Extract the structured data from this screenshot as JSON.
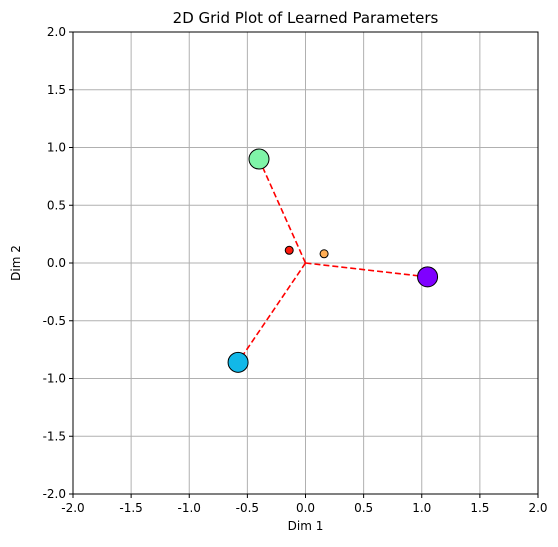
{
  "chart_data": {
    "type": "scatter",
    "title": "2D Grid Plot of Learned Parameters",
    "xlabel": "Dim 1",
    "ylabel": "Dim 2",
    "xlim": [
      -2.0,
      2.0
    ],
    "ylim": [
      -2.0,
      2.0
    ],
    "xticks": [
      "-2.0",
      "-1.5",
      "-1.0",
      "-0.5",
      "0.0",
      "0.5",
      "1.0",
      "1.5",
      "2.0"
    ],
    "yticks": [
      "2.0",
      "1.5",
      "1.0",
      "0.5",
      "0.0",
      "-0.5",
      "-1.0",
      "-1.5",
      "-2.0"
    ],
    "grid": true,
    "points": [
      {
        "x": -0.4,
        "y": 0.9,
        "size": "large",
        "color": "#7ff5a8"
      },
      {
        "x": 1.05,
        "y": -0.12,
        "size": "large",
        "color": "#7f00ff"
      },
      {
        "x": -0.58,
        "y": -0.86,
        "size": "large",
        "color": "#12b8e8"
      },
      {
        "x": -0.14,
        "y": 0.11,
        "size": "small",
        "color": "#ff1a0d"
      },
      {
        "x": 0.16,
        "y": 0.08,
        "size": "small",
        "color": "#ffae55"
      }
    ],
    "connectors": {
      "origin": [
        0.0,
        0.0
      ],
      "targets": [
        [
          -0.4,
          0.9
        ],
        [
          1.05,
          -0.12
        ],
        [
          -0.58,
          -0.86
        ]
      ],
      "style": "dashed",
      "color": "#ff0000"
    }
  }
}
